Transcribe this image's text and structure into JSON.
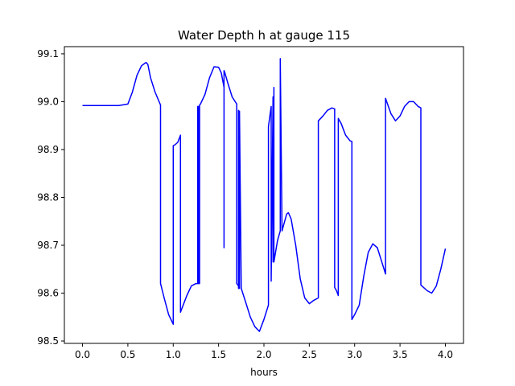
{
  "chart_data": {
    "type": "line",
    "title": "Water Depth h at gauge 115",
    "xlabel": "hours",
    "ylabel": "",
    "xlim": [
      -0.2,
      4.2
    ],
    "ylim": [
      98.495,
      99.115
    ],
    "xticks": [
      0.0,
      0.5,
      1.0,
      1.5,
      2.0,
      2.5,
      3.0,
      3.5,
      4.0
    ],
    "xtick_labels": [
      "0.0",
      "0.5",
      "1.0",
      "1.5",
      "2.0",
      "2.5",
      "3.0",
      "3.5",
      "4.0"
    ],
    "yticks": [
      98.5,
      98.6,
      98.7,
      98.8,
      98.9,
      99.0,
      99.1
    ],
    "ytick_labels": [
      "98.5",
      "98.6",
      "98.7",
      "98.8",
      "98.9",
      "99.0",
      "99.1"
    ],
    "grid": false,
    "legend": "none",
    "series": [
      {
        "color": "#0000ff",
        "x": [
          0.0,
          0.2,
          0.4,
          0.5,
          0.55,
          0.6,
          0.65,
          0.7,
          0.72,
          0.75,
          0.8,
          0.86,
          0.86,
          0.9,
          0.95,
          1.0,
          1.0,
          1.02,
          1.05,
          1.08,
          1.08,
          1.1,
          1.15,
          1.2,
          1.25,
          1.27,
          1.27,
          1.28,
          1.28,
          1.29,
          1.29,
          1.3,
          1.35,
          1.4,
          1.45,
          1.5,
          1.53,
          1.56,
          1.56,
          1.56,
          1.57,
          1.57,
          1.6,
          1.65,
          1.7,
          1.7,
          1.72,
          1.72,
          1.72,
          1.73,
          1.73,
          1.75,
          1.8,
          1.85,
          1.9,
          1.95,
          2.0,
          2.05,
          2.05,
          2.08,
          2.08,
          2.1,
          2.1,
          2.11,
          2.11,
          2.15,
          2.18,
          2.18,
          2.2,
          2.25,
          2.27,
          2.3,
          2.35,
          2.4,
          2.45,
          2.5,
          2.55,
          2.6,
          2.6,
          2.65,
          2.7,
          2.75,
          2.78,
          2.78,
          2.8,
          2.82,
          2.82,
          2.85,
          2.9,
          2.95,
          2.97,
          2.97,
          3.0,
          3.05,
          3.1,
          3.15,
          3.2,
          3.25,
          3.3,
          3.34,
          3.34,
          3.4,
          3.45,
          3.5,
          3.55,
          3.6,
          3.65,
          3.7,
          3.72,
          3.73,
          3.73,
          3.8,
          3.85,
          3.9,
          3.95,
          4.0
        ],
        "y": [
          98.992,
          98.992,
          98.992,
          98.995,
          99.02,
          99.055,
          99.075,
          99.082,
          99.078,
          99.05,
          99.02,
          98.993,
          98.62,
          98.59,
          98.555,
          98.535,
          98.908,
          98.91,
          98.915,
          98.93,
          98.56,
          98.57,
          98.595,
          98.615,
          98.62,
          98.62,
          98.99,
          98.99,
          98.62,
          98.62,
          98.993,
          98.995,
          99.015,
          99.05,
          99.073,
          99.072,
          99.06,
          99.03,
          98.695,
          99.065,
          99.06,
          99.06,
          99.04,
          99.01,
          98.995,
          98.62,
          98.615,
          98.982,
          98.61,
          98.61,
          98.98,
          98.61,
          98.58,
          98.55,
          98.53,
          98.52,
          98.545,
          98.575,
          98.948,
          98.99,
          98.625,
          99.01,
          98.665,
          99.03,
          98.665,
          98.71,
          98.73,
          99.09,
          98.73,
          98.765,
          98.768,
          98.755,
          98.7,
          98.63,
          98.59,
          98.578,
          98.585,
          98.59,
          98.96,
          98.97,
          98.982,
          98.987,
          98.985,
          98.612,
          98.605,
          98.595,
          98.965,
          98.955,
          98.93,
          98.918,
          98.917,
          98.545,
          98.555,
          98.575,
          98.635,
          98.685,
          98.703,
          98.695,
          98.665,
          98.64,
          99.007,
          98.975,
          98.96,
          98.97,
          98.99,
          99.0,
          99.0,
          98.99,
          98.988,
          98.987,
          98.617,
          98.605,
          98.6,
          98.615,
          98.65,
          98.693
        ]
      }
    ]
  }
}
